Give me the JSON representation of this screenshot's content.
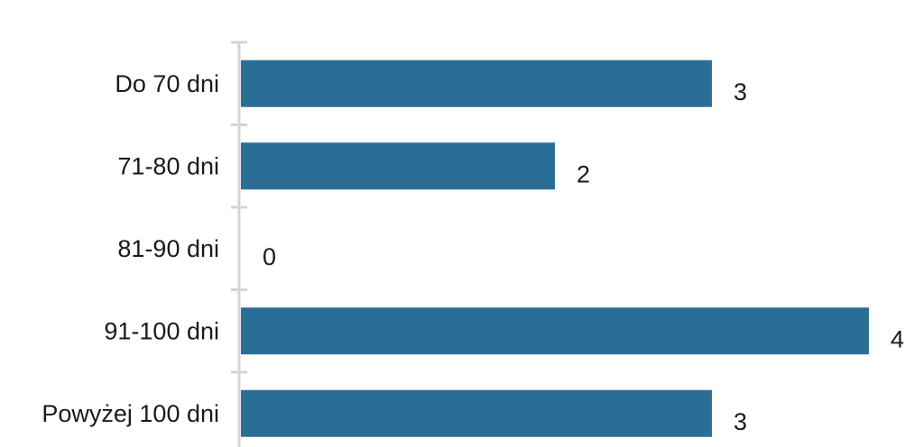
{
  "colors": {
    "bar": "#2a6e96",
    "axis": "#d4d4d4",
    "text": "#1a1a1a",
    "background": "#ffffff"
  },
  "chart_data": {
    "type": "bar",
    "orientation": "horizontal",
    "categories": [
      "Do 70 dni",
      "71-80 dni",
      "81-90 dni",
      "91-100 dni",
      "Powyżej 100 dni"
    ],
    "values": [
      3,
      2,
      0,
      4,
      3
    ],
    "value_labels": [
      "3",
      "2",
      "0",
      "4",
      "3"
    ],
    "title": "",
    "xlabel": "",
    "ylabel": "",
    "xlim": [
      0,
      4
    ],
    "grid": false,
    "legend": "none"
  }
}
